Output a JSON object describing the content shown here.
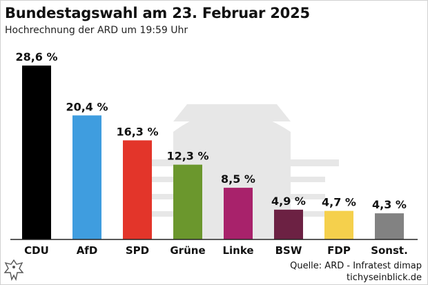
{
  "header": {
    "title": "Bundestagswahl am 23. Februar 2025",
    "subtitle": "Hochrechnung der ARD um 19:59 Uhr"
  },
  "footer": {
    "source": "Quelle: ARD - Infratest dimap",
    "site": "tichyseinblick.de"
  },
  "chart_data": {
    "type": "bar",
    "title": "Bundestagswahl am 23. Februar 2025",
    "subtitle": "Hochrechnung der ARD um 19:59 Uhr",
    "xlabel": "",
    "ylabel": "",
    "ylim": [
      0,
      28.6
    ],
    "grid": false,
    "categories": [
      "CDU",
      "AfD",
      "SPD",
      "Grüne",
      "Linke",
      "BSW",
      "FDP",
      "Sonst."
    ],
    "values": [
      28.6,
      20.4,
      16.3,
      12.3,
      8.5,
      4.9,
      4.7,
      4.3
    ],
    "labels": [
      "28,6 %",
      "20,4 %",
      "16,3 %",
      "12,3 %",
      "8,5 %",
      "4,9 %",
      "4,7 %",
      "4,3 %"
    ],
    "colors": [
      "#000000",
      "#3f9ddf",
      "#e3352a",
      "#6b972d",
      "#a8226b",
      "#6c2143",
      "#f5d04c",
      "#828282"
    ]
  }
}
